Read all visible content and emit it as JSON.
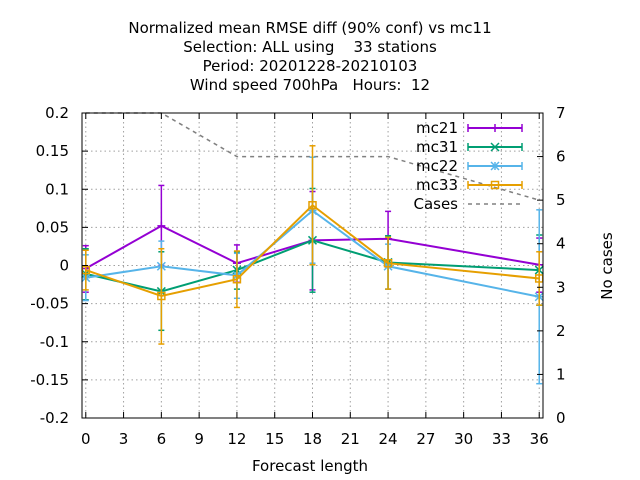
{
  "chart_data": {
    "type": "line",
    "title_lines": [
      "Normalized mean RMSE diff (90% conf) vs mc11",
      "Selection: ALL using    33 stations",
      "Period: 20201228-20210103",
      "Wind speed 700hPa   Hours:  12"
    ],
    "xlabel": "Forecast length",
    "ylabel": "",
    "y2label": "No cases",
    "xlim": [
      -0.3,
      36.3
    ],
    "ylim": [
      -0.2,
      0.2
    ],
    "y2lim": [
      0,
      7
    ],
    "xticks": [
      "0",
      "3",
      "6",
      "9",
      "12",
      "15",
      "18",
      "21",
      "24",
      "27",
      "30",
      "33",
      "36"
    ],
    "yticks": [
      "0.2",
      "0.15",
      "0.1",
      "0.05",
      "0",
      "-0.05",
      "-0.1",
      "-0.15",
      "-0.2"
    ],
    "y2ticks": [
      "7",
      "6",
      "5",
      "4",
      "3",
      "2",
      "1",
      "0"
    ],
    "grid": true,
    "legend_position": "top-right",
    "series": [
      {
        "name": "mc21",
        "color": "#9400d3",
        "marker": "plus",
        "x": [
          0,
          6,
          12,
          18,
          24,
          36
        ],
        "y": [
          -0.004,
          0.052,
          0.003,
          0.033,
          0.035,
          0.001
        ],
        "err_low": [
          -0.035,
          0.0,
          -0.022,
          -0.032,
          -0.002,
          -0.035
        ],
        "err_high": [
          0.026,
          0.105,
          0.027,
          0.097,
          0.071,
          0.036
        ]
      },
      {
        "name": "mc31",
        "color": "#009e73",
        "marker": "cross",
        "x": [
          0,
          6,
          12,
          18,
          24,
          36
        ],
        "y": [
          -0.011,
          -0.034,
          -0.006,
          0.033,
          0.004,
          -0.006
        ],
        "err_low": [
          -0.045,
          -0.085,
          -0.031,
          -0.035,
          -0.031,
          -0.052
        ],
        "err_high": [
          0.022,
          0.018,
          0.018,
          0.101,
          0.039,
          0.04
        ]
      },
      {
        "name": "mc22",
        "color": "#56b4e9",
        "marker": "star",
        "x": [
          0,
          6,
          12,
          18,
          24,
          36
        ],
        "y": [
          -0.016,
          -0.001,
          -0.013,
          0.072,
          -0.001,
          -0.041
        ],
        "err_low": [
          -0.046,
          -0.035,
          -0.043,
          0.003,
          -0.031,
          -0.155
        ],
        "err_high": [
          0.014,
          0.032,
          0.016,
          0.142,
          0.028,
          0.073
        ]
      },
      {
        "name": "mc33",
        "color": "#e69f00",
        "marker": "square",
        "x": [
          0,
          6,
          12,
          18,
          24,
          36
        ],
        "y": [
          -0.006,
          -0.04,
          -0.018,
          0.079,
          0.003,
          -0.017
        ],
        "err_low": [
          -0.032,
          -0.103,
          -0.055,
          0.001,
          -0.031,
          -0.052
        ],
        "err_high": [
          0.02,
          0.022,
          0.019,
          0.157,
          0.037,
          0.018
        ]
      }
    ],
    "cases": {
      "name": "Cases",
      "color": "#808080",
      "axis": "y2",
      "x": [
        0,
        6,
        12,
        18,
        24,
        36
      ],
      "y": [
        7,
        7,
        6,
        6,
        6,
        5
      ]
    }
  }
}
